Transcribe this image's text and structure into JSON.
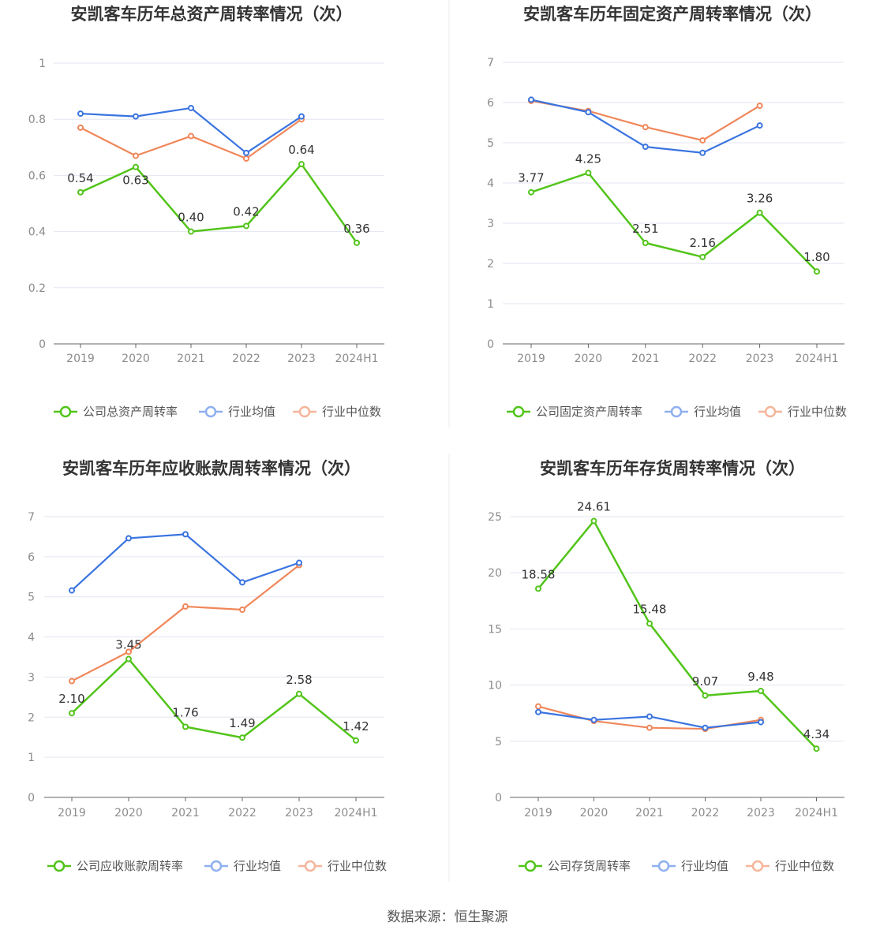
{
  "footer": "数据来源：恒生聚源",
  "legend_common": [
    "行业均值",
    "行业中位数"
  ],
  "colors": {
    "company": "#52c41a",
    "industry_mean": "#3a74e0",
    "industry_median": "#f0875a",
    "grid": "#e3e6f0",
    "axis": "#666666"
  },
  "chart_data": [
    {
      "type": "line",
      "title": "安凯客车历年总资产周转率情况（次）",
      "categories": [
        "2019",
        "2020",
        "2021",
        "2022",
        "2023",
        "2024H1"
      ],
      "yticks": [
        "0",
        "0.2",
        "0.4",
        "0.6",
        "0.8",
        "1"
      ],
      "ylim": [
        0,
        1
      ],
      "series": [
        {
          "name": "公司总资产周转率",
          "values": [
            0.54,
            0.63,
            0.4,
            0.42,
            0.64,
            0.36
          ],
          "labels": [
            "0.54",
            "0.63",
            "0.40",
            "0.42",
            "0.64",
            "0.36"
          ]
        },
        {
          "name": "行业均值",
          "values": [
            0.82,
            0.81,
            0.84,
            0.68,
            0.81,
            null
          ]
        },
        {
          "name": "行业中位数",
          "values": [
            0.77,
            0.67,
            0.74,
            0.66,
            0.8,
            null
          ]
        }
      ]
    },
    {
      "type": "line",
      "title": "安凯客车历年固定资产周转率情况（次）",
      "categories": [
        "2019",
        "2020",
        "2021",
        "2022",
        "2023",
        "2024H1"
      ],
      "yticks": [
        "0",
        "1",
        "2",
        "3",
        "4",
        "5",
        "6",
        "7"
      ],
      "ylim": [
        0,
        7
      ],
      "series": [
        {
          "name": "公司固定资产周转率",
          "values": [
            3.77,
            4.25,
            2.51,
            2.16,
            3.26,
            1.8
          ],
          "labels": [
            "3.77",
            "4.25",
            "2.51",
            "2.16",
            "3.26",
            "1.80"
          ]
        },
        {
          "name": "行业均值",
          "values": [
            6.07,
            5.76,
            4.9,
            4.75,
            5.43,
            null
          ]
        },
        {
          "name": "行业中位数",
          "values": [
            6.04,
            5.79,
            5.39,
            5.06,
            5.92,
            null
          ]
        }
      ]
    },
    {
      "type": "line",
      "title": "安凯客车历年应收账款周转率情况（次）",
      "categories": [
        "2019",
        "2020",
        "2021",
        "2022",
        "2023",
        "2024H1"
      ],
      "yticks": [
        "0",
        "1",
        "2",
        "3",
        "4",
        "5",
        "6",
        "7"
      ],
      "ylim": [
        0,
        7
      ],
      "series": [
        {
          "name": "公司应收账款周转率",
          "values": [
            2.1,
            3.45,
            1.76,
            1.49,
            2.58,
            1.42
          ],
          "labels": [
            "2.10",
            "3.45",
            "1.76",
            "1.49",
            "2.58",
            "1.42"
          ]
        },
        {
          "name": "行业均值",
          "values": [
            5.16,
            6.46,
            6.56,
            5.36,
            5.85,
            null
          ]
        },
        {
          "name": "行业中位数",
          "values": [
            2.9,
            3.63,
            4.76,
            4.68,
            5.79,
            null
          ]
        }
      ]
    },
    {
      "type": "line",
      "title": "安凯客车历年存货周转率情况（次）",
      "categories": [
        "2019",
        "2020",
        "2021",
        "2022",
        "2023",
        "2024H1"
      ],
      "yticks": [
        "0",
        "5",
        "10",
        "15",
        "20",
        "25"
      ],
      "ylim": [
        0,
        25
      ],
      "series": [
        {
          "name": "公司存货周转率",
          "values": [
            18.58,
            24.61,
            15.48,
            9.07,
            9.48,
            4.34
          ],
          "labels": [
            "18.58",
            "24.61",
            "15.48",
            "9.07",
            "9.48",
            "4.34"
          ]
        },
        {
          "name": "行业均值",
          "values": [
            7.6,
            6.9,
            7.2,
            6.2,
            6.7,
            null
          ]
        },
        {
          "name": "行业中位数",
          "values": [
            8.1,
            6.8,
            6.2,
            6.1,
            6.9,
            null
          ]
        }
      ]
    }
  ]
}
